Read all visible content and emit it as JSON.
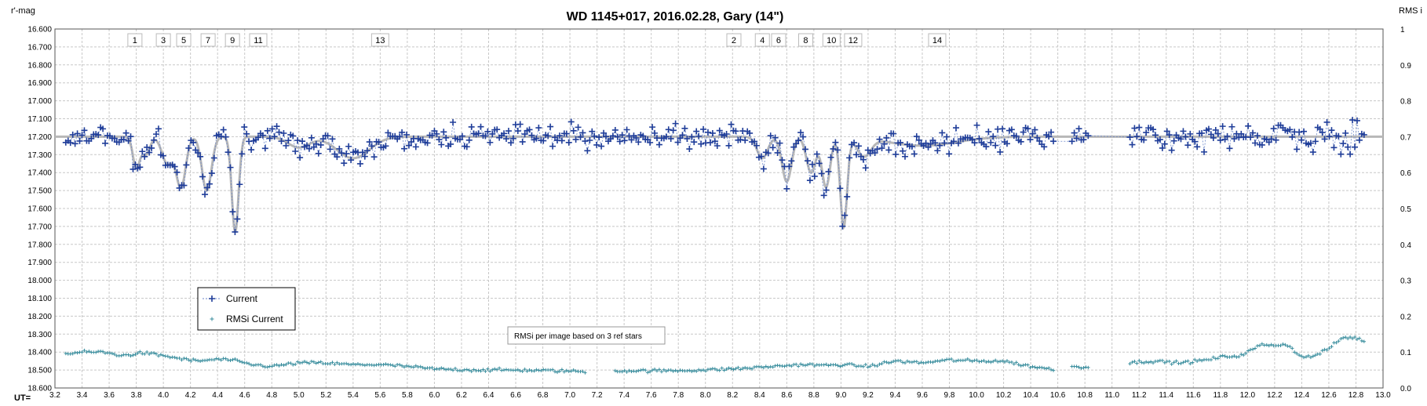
{
  "chart_data": {
    "type": "line",
    "title": "WD 1145+017,  2016.02.28,   Gary (14\")",
    "ylabel_left": "r'-mag",
    "ylabel_right": "RMS i",
    "xlabel": "UT=",
    "xlim": [
      3.2,
      13.0
    ],
    "ylim_left": [
      16.6,
      18.6
    ],
    "ylim_right": [
      0.0,
      1.0
    ],
    "left_inverted": true,
    "grid": true,
    "legend_position": "lower-left",
    "x_ticks": [
      "3.2",
      "3.4",
      "3.6",
      "3.8",
      "4.0",
      "4.2",
      "4.4",
      "4.6",
      "4.8",
      "5.0",
      "5.2",
      "5.4",
      "5.6",
      "5.8",
      "6.0",
      "6.2",
      "6.4",
      "6.6",
      "6.8",
      "7.0",
      "7.2",
      "7.4",
      "7.6",
      "7.8",
      "8.0",
      "8.2",
      "8.4",
      "8.6",
      "8.8",
      "9.0",
      "9.2",
      "9.4",
      "9.6",
      "9.8",
      "10.0",
      "10.2",
      "10.4",
      "10.6",
      "10.8",
      "11.0",
      "11.2",
      "11.4",
      "11.6",
      "11.8",
      "12.0",
      "12.2",
      "12.4",
      "12.6",
      "12.8",
      "13.0"
    ],
    "y_ticks_left": [
      "16.600",
      "16.700",
      "16.800",
      "16.900",
      "17.000",
      "17.100",
      "17.200",
      "17.300",
      "17.400",
      "17.500",
      "17.600",
      "17.700",
      "17.800",
      "17.900",
      "18.000",
      "18.100",
      "18.200",
      "18.300",
      "18.400",
      "18.500",
      "18.600"
    ],
    "y_ticks_right": [
      "1",
      "0.9",
      "0.8",
      "0.7",
      "0.6",
      "0.5",
      "0.4",
      "0.3",
      "0.2",
      "0.1",
      "0.0"
    ],
    "annotations": [
      {
        "label": "1",
        "x": 3.79
      },
      {
        "label": "3",
        "x": 4.0
      },
      {
        "label": "5",
        "x": 4.15
      },
      {
        "label": "7",
        "x": 4.33
      },
      {
        "label": "9",
        "x": 4.51
      },
      {
        "label": "11",
        "x": 4.7
      },
      {
        "label": "13",
        "x": 5.6
      },
      {
        "label": "2",
        "x": 8.21
      },
      {
        "label": "4",
        "x": 8.42
      },
      {
        "label": "6",
        "x": 8.54
      },
      {
        "label": "8",
        "x": 8.74
      },
      {
        "label": "10",
        "x": 8.93
      },
      {
        "label": "12",
        "x": 9.09
      },
      {
        "label": "14",
        "x": 9.71
      }
    ],
    "note": "RMSi per image based on 3 ref stars",
    "baseline_mag": 17.2,
    "dips": [
      {
        "center": 3.8,
        "depth": 0.17,
        "width": 0.025
      },
      {
        "center": 3.87,
        "depth": 0.1,
        "width": 0.03
      },
      {
        "center": 4.03,
        "depth": 0.15,
        "width": 0.04
      },
      {
        "center": 4.13,
        "depth": 0.28,
        "width": 0.035
      },
      {
        "center": 4.32,
        "depth": 0.3,
        "width": 0.035
      },
      {
        "center": 4.53,
        "depth": 0.53,
        "width": 0.025
      },
      {
        "center": 5.0,
        "depth": 0.06,
        "width": 0.08
      },
      {
        "center": 5.4,
        "depth": 0.12,
        "width": 0.12
      },
      {
        "center": 8.42,
        "depth": 0.12,
        "width": 0.04
      },
      {
        "center": 8.6,
        "depth": 0.25,
        "width": 0.035
      },
      {
        "center": 8.78,
        "depth": 0.2,
        "width": 0.035
      },
      {
        "center": 8.89,
        "depth": 0.28,
        "width": 0.03
      },
      {
        "center": 9.02,
        "depth": 0.5,
        "width": 0.025
      },
      {
        "center": 9.17,
        "depth": 0.1,
        "width": 0.05
      },
      {
        "center": 9.6,
        "depth": 0.05,
        "width": 0.25
      }
    ],
    "series": [
      {
        "name": "Current",
        "color": "#1f3d99",
        "marker": "+",
        "x_range": [
          3.28,
          12.86
        ],
        "gaps": [
          [
            10.57,
            10.7
          ],
          [
            10.84,
            11.12
          ]
        ],
        "noise_mag": 0.045,
        "n_points": 560
      },
      {
        "name": "RMSi Current",
        "color": "#3a8e9e",
        "marker": "+",
        "axis": "right",
        "x": [
          3.28,
          3.4,
          3.55,
          3.7,
          3.85,
          4.0,
          4.15,
          4.25,
          4.4,
          4.5,
          4.65,
          4.8,
          5.0,
          5.15,
          5.4,
          5.6,
          5.8,
          6.0,
          6.3,
          6.6,
          6.9,
          7.2,
          7.4,
          7.7,
          8.0,
          8.3,
          8.5,
          8.7,
          8.9,
          9.0,
          9.2,
          9.4,
          9.6,
          9.8,
          10.0,
          10.2,
          10.4,
          10.56,
          10.7,
          10.84,
          11.12,
          11.3,
          11.5,
          11.7,
          11.82,
          11.95,
          12.1,
          12.2,
          12.3,
          12.4,
          12.5,
          12.6,
          12.7,
          12.8,
          12.86
        ],
        "values": [
          0.095,
          0.1,
          0.1,
          0.09,
          0.098,
          0.09,
          0.08,
          0.075,
          0.08,
          0.078,
          0.065,
          0.06,
          0.07,
          0.07,
          0.065,
          0.065,
          0.06,
          0.053,
          0.05,
          0.05,
          0.048,
          0.045,
          0.048,
          0.048,
          0.05,
          0.055,
          0.06,
          0.065,
          0.063,
          0.065,
          0.06,
          0.075,
          0.07,
          0.078,
          0.075,
          0.075,
          0.06,
          0.052,
          0.06,
          0.058,
          0.07,
          0.075,
          0.07,
          0.078,
          0.087,
          0.09,
          0.12,
          0.12,
          0.12,
          0.085,
          0.09,
          0.11,
          0.14,
          0.14,
          0.13
        ],
        "gaps": [
          [
            7.12,
            7.32
          ]
        ]
      }
    ]
  }
}
